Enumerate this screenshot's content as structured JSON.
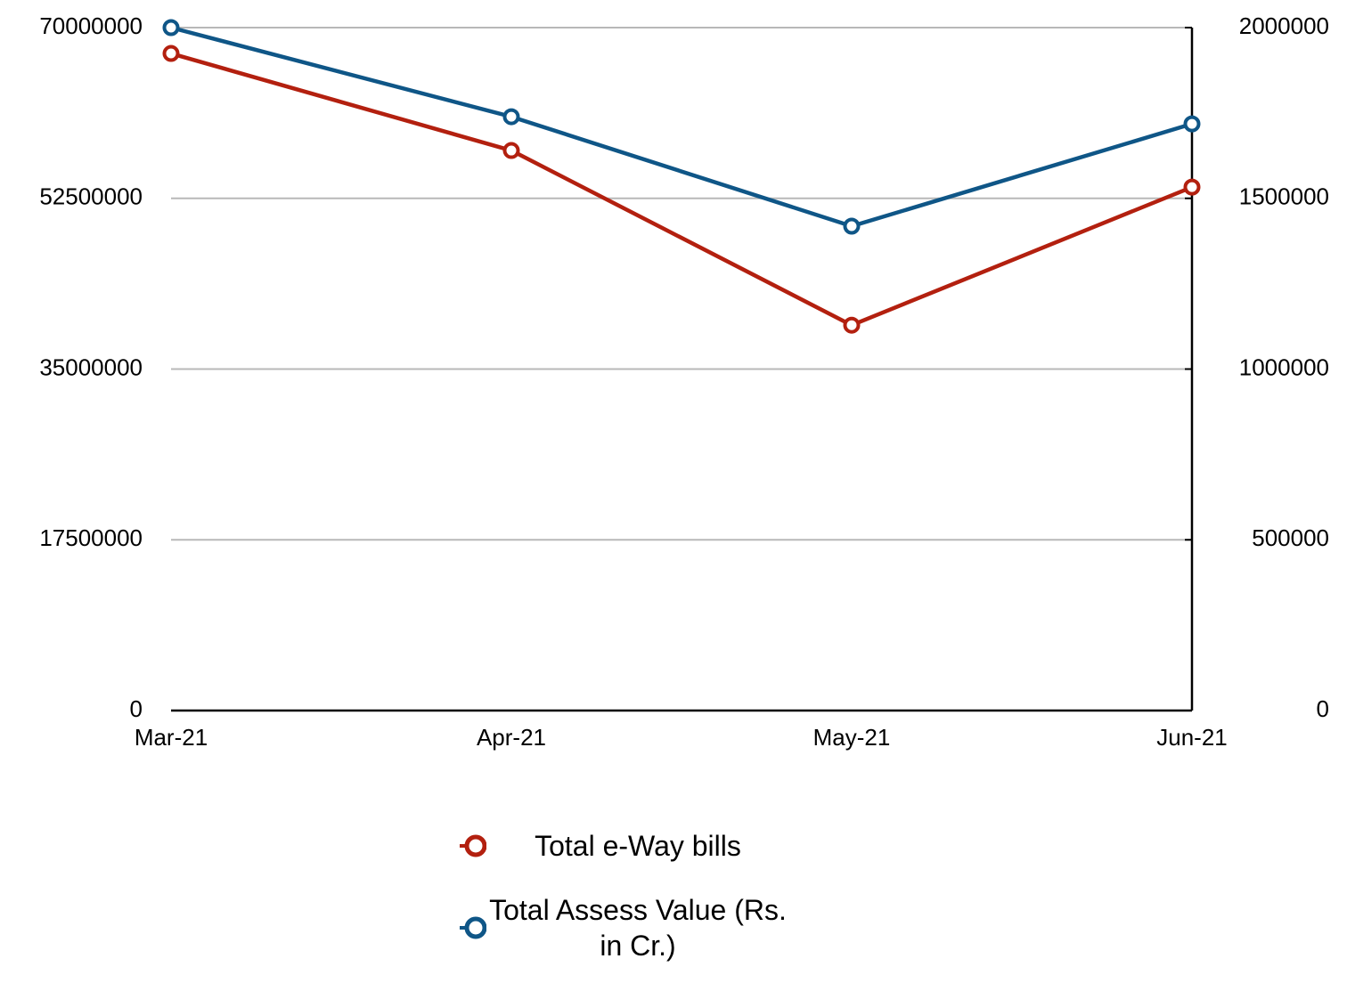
{
  "chart_data": {
    "type": "line",
    "categories": [
      "Mar-21",
      "Apr-21",
      "May-21",
      "Jun-21"
    ],
    "series": [
      {
        "name": "Total e-Way bills",
        "color": "#b3200f",
        "values": [
          67350000,
          57400000,
          39500000,
          53650000
        ]
      },
      {
        "name": "Total Assess Value (Rs. in Cr.)",
        "color": "#0f5687",
        "axis": "y2",
        "values": [
          2000000,
          1739000,
          1418500,
          1718000
        ]
      }
    ],
    "ylim": [
      0,
      70000000
    ],
    "yticks": [
      0,
      17500000,
      35000000,
      52500000,
      70000000
    ],
    "y2lim": [
      0,
      2000000
    ],
    "y2ticks": [
      0,
      500000,
      1000000,
      1500000,
      2000000
    ],
    "grid": true,
    "legend": "bottom"
  }
}
